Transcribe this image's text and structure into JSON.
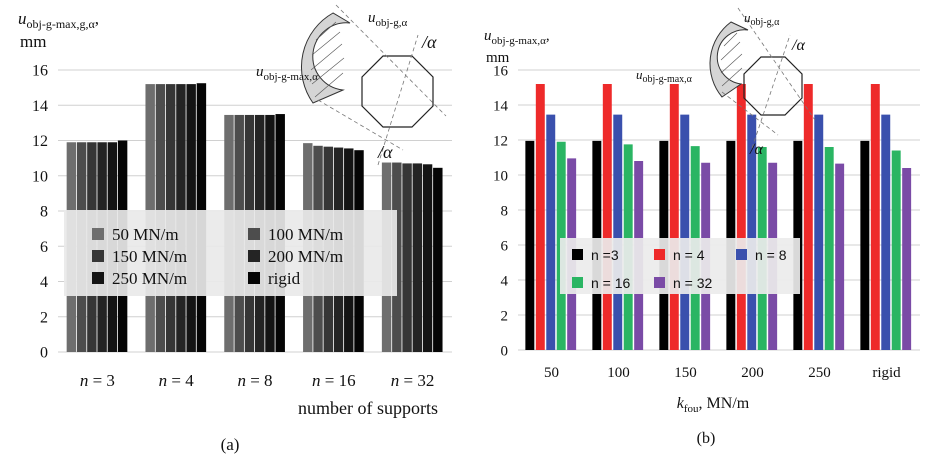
{
  "chart_data": [
    {
      "panel_label": "(a)",
      "type": "bar",
      "ylabel_main": "u",
      "ylabel_sub": "obj-g-max,g,α",
      "ylabel_comma": ",",
      "yunit": "mm",
      "xlabel": "number of supports",
      "ylim": [
        0,
        16
      ],
      "yticks": [
        0,
        2,
        4,
        6,
        8,
        10,
        12,
        14,
        16
      ],
      "grid": true,
      "legend_position": "center-left",
      "categories": [
        {
          "prefix": "n",
          "rest": " = 3"
        },
        {
          "prefix": "n",
          "rest": " = 4"
        },
        {
          "prefix": "n",
          "rest": " = 8"
        },
        {
          "prefix": "n",
          "rest": " = 16"
        },
        {
          "prefix": "n",
          "rest": " = 32"
        }
      ],
      "series": [
        {
          "name": "50 MN/m",
          "color": "#6e6e6e",
          "values": [
            11.9,
            15.2,
            13.45,
            11.85,
            10.75
          ]
        },
        {
          "name": "100 MN/m",
          "color": "#4d4d4d",
          "values": [
            11.9,
            15.2,
            13.45,
            11.7,
            10.75
          ]
        },
        {
          "name": "150 MN/m",
          "color": "#363636",
          "values": [
            11.9,
            15.2,
            13.45,
            11.65,
            10.7
          ]
        },
        {
          "name": "200 MN/m",
          "color": "#242424",
          "values": [
            11.9,
            15.2,
            13.45,
            11.6,
            10.7
          ]
        },
        {
          "name": "250 MN/m",
          "color": "#141414",
          "values": [
            11.9,
            15.2,
            13.45,
            11.55,
            10.65
          ]
        },
        {
          "name": "rigid",
          "color": "#050505",
          "values": [
            12.0,
            15.25,
            13.5,
            11.45,
            10.45
          ]
        }
      ],
      "inset_labels": [
        {
          "main": "u",
          "sub": "obj-g,α"
        },
        {
          "main": "u",
          "sub": "obj-g-max,α"
        },
        {
          "main": "/α"
        },
        {
          "main": "/α"
        }
      ]
    },
    {
      "panel_label": "(b)",
      "type": "bar",
      "ylabel_main": "u",
      "ylabel_sub": "obj-g-max,α",
      "ylabel_comma": ",",
      "yunit": "mm",
      "xlabel_main": "k",
      "xlabel_sub": "fou",
      "xlabel_rest": ", MN/m",
      "ylim": [
        0,
        16
      ],
      "yticks": [
        0,
        2,
        4,
        6,
        8,
        10,
        12,
        14,
        16
      ],
      "grid": true,
      "legend_position": "center",
      "categories": [
        "50",
        "100",
        "150",
        "200",
        "250",
        "rigid"
      ],
      "series": [
        {
          "name": "n =3",
          "color": "#000000",
          "values": [
            11.95,
            11.95,
            11.95,
            11.95,
            11.95,
            11.95
          ]
        },
        {
          "name": "n = 4",
          "color": "#ee2a2a",
          "values": [
            15.2,
            15.2,
            15.2,
            15.2,
            15.2,
            15.2
          ]
        },
        {
          "name": "n = 8",
          "color": "#3a50ad",
          "values": [
            13.45,
            13.45,
            13.45,
            13.45,
            13.45,
            13.45
          ]
        },
        {
          "name": "n = 16",
          "color": "#2ab563",
          "values": [
            11.9,
            11.75,
            11.65,
            11.6,
            11.6,
            11.4
          ]
        },
        {
          "name": "n = 32",
          "color": "#7a4ba6",
          "values": [
            10.95,
            10.8,
            10.7,
            10.7,
            10.65,
            10.4
          ]
        }
      ],
      "inset_labels": [
        {
          "main": "u",
          "sub": "obj-g,α"
        },
        {
          "main": "u",
          "sub": "obj-g-max,α"
        },
        {
          "main": "/α"
        },
        {
          "main": "/α"
        }
      ]
    }
  ]
}
